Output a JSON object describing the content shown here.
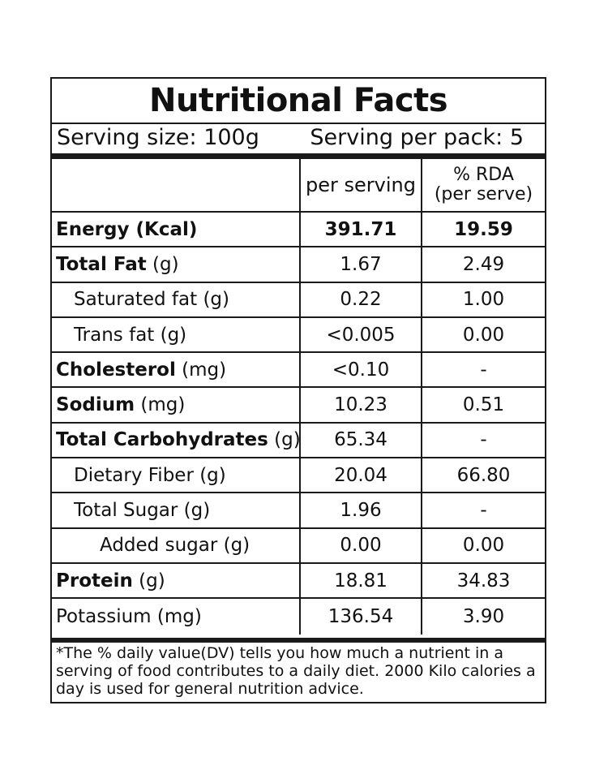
{
  "label": {
    "title": "Nutritional Facts",
    "serving_size": "Serving size: 100g",
    "serving_per_pack": "Serving per pack: 5",
    "columns": {
      "per_serving": "per serving",
      "rda_line1": "% RDA",
      "rda_line2": "(per serve)"
    },
    "rows": [
      {
        "name": "Energy (Kcal)",
        "unit": "",
        "per_serving": "391.71",
        "rda": "19.59",
        "bold_name": true,
        "bold_values": true,
        "indent": 0
      },
      {
        "name": "Total Fat",
        "unit": " (g)",
        "per_serving": "1.67",
        "rda": "2.49",
        "bold_name": true,
        "bold_values": false,
        "indent": 0
      },
      {
        "name": "Saturated fat (g)",
        "unit": "",
        "per_serving": "0.22",
        "rda": "1.00",
        "bold_name": false,
        "bold_values": false,
        "indent": 1
      },
      {
        "name": "Trans fat (g)",
        "unit": "",
        "per_serving": "<0.005",
        "rda": "0.00",
        "bold_name": false,
        "bold_values": false,
        "indent": 1
      },
      {
        "name": "Cholesterol",
        "unit": " (mg)",
        "per_serving": "<0.10",
        "rda": "-",
        "bold_name": true,
        "bold_values": false,
        "indent": 0
      },
      {
        "name": "Sodium",
        "unit": " (mg)",
        "per_serving": "10.23",
        "rda": "0.51",
        "bold_name": true,
        "bold_values": false,
        "indent": 0
      },
      {
        "name": "Total Carbohydrates",
        "unit": " (g)",
        "per_serving": "65.34",
        "rda": "-",
        "bold_name": true,
        "bold_values": false,
        "indent": 0
      },
      {
        "name": "Dietary Fiber (g)",
        "unit": "",
        "per_serving": "20.04",
        "rda": "66.80",
        "bold_name": false,
        "bold_values": false,
        "indent": 1
      },
      {
        "name": "Total Sugar (g)",
        "unit": "",
        "per_serving": "1.96",
        "rda": "-",
        "bold_name": false,
        "bold_values": false,
        "indent": 1
      },
      {
        "name": "Added sugar (g)",
        "unit": "",
        "per_serving": "0.00",
        "rda": "0.00",
        "bold_name": false,
        "bold_values": false,
        "indent": 2
      },
      {
        "name": "Protein",
        "unit": " (g)",
        "per_serving": "18.81",
        "rda": "34.83",
        "bold_name": true,
        "bold_values": false,
        "indent": 0
      },
      {
        "name": "Potassium (mg)",
        "unit": "",
        "per_serving": "136.54",
        "rda": "3.90",
        "bold_name": false,
        "bold_values": false,
        "indent": 0
      }
    ],
    "footnote": "*The % daily value(DV) tells you how much a nutrient in a serving of food contributes to a daily diet. 2000 Kilo calories a day is used for general nutrition advice."
  }
}
